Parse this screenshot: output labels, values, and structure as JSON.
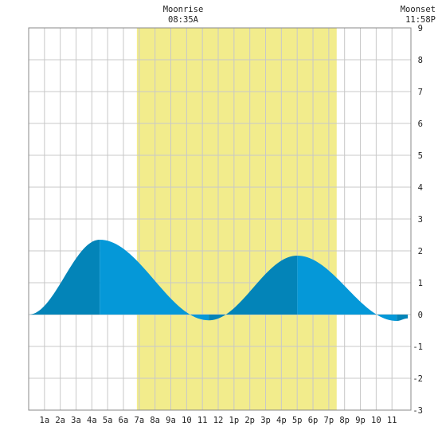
{
  "chart_data": {
    "type": "area",
    "annotations": [
      {
        "label": "Moonrise",
        "time": "08:35A",
        "hour": 8.583
      },
      {
        "label": "Moonset",
        "time": "11:58P",
        "hour": 23.967
      }
    ],
    "daylight": {
      "start_hour": 6.85,
      "end_hour": 19.5
    },
    "x_ticks": [
      "1a",
      "2a",
      "3a",
      "4a",
      "5a",
      "6a",
      "7a",
      "8a",
      "9a",
      "10",
      "11",
      "12",
      "1p",
      "2p",
      "3p",
      "4p",
      "5p",
      "6p",
      "7p",
      "8p",
      "9p",
      "10",
      "11"
    ],
    "xlim": [
      0,
      24.2
    ],
    "ylim": [
      -3,
      9
    ],
    "y_ticks": [
      -3,
      -2,
      -1,
      0,
      1,
      2,
      3,
      4,
      5,
      6,
      7,
      8,
      9
    ],
    "grid": true,
    "tide_extremes": [
      {
        "hour": 0.0,
        "value": 0.0
      },
      {
        "hour": 4.5,
        "value": 2.35
      },
      {
        "hour": 11.4,
        "value": -0.18
      },
      {
        "hour": 17.0,
        "value": 1.85
      },
      {
        "hour": 23.3,
        "value": -0.2
      },
      {
        "hour": 24.0,
        "value": -0.12
      }
    ],
    "colors": {
      "daylight": "#f2ec8c",
      "rising": "#0384b8",
      "falling": "#0598d8",
      "grid": "#c8c8c8"
    }
  }
}
